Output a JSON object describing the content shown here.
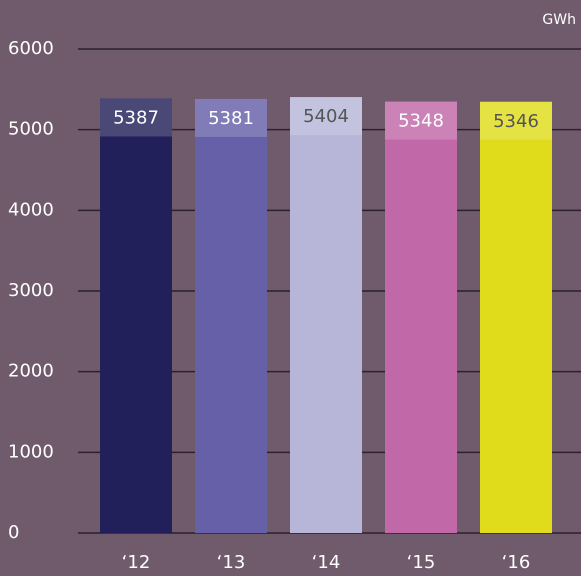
{
  "chart_data": {
    "type": "bar",
    "unit": "GWh",
    "categories": [
      "‘12",
      "‘13",
      "‘14",
      "‘15",
      "‘16"
    ],
    "values": [
      5387,
      5381,
      5404,
      5348,
      5346
    ],
    "colors": [
      "#22205a",
      "#6660a8",
      "#b8b6d8",
      "#c068a8",
      "#e0dc1c"
    ],
    "ylim": [
      0,
      6000
    ],
    "yticks": [
      0,
      1000,
      2000,
      3000,
      4000,
      5000,
      6000
    ],
    "grid": true
  }
}
